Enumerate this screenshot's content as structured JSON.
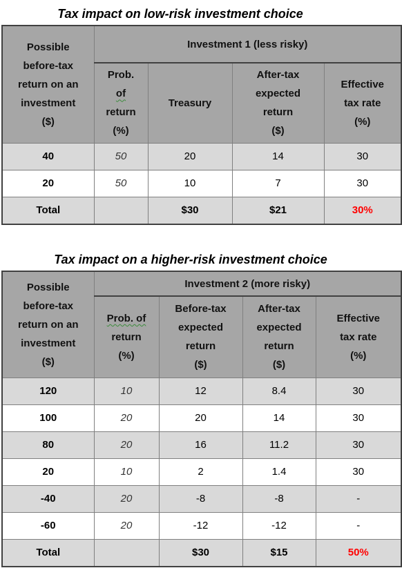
{
  "table1": {
    "title": "Tax impact on low-risk investment choice",
    "header": {
      "col1": [
        "Possible",
        "before-tax",
        "return on an",
        "investment",
        "($)"
      ],
      "group": "Investment 1 (less risky)",
      "prob": [
        "Prob.",
        "of",
        "return",
        "(%)"
      ],
      "treasury": "Treasury",
      "aftertax": [
        "After-tax",
        "expected",
        "return",
        "($)"
      ],
      "effective": [
        "Effective",
        "tax rate",
        "(%)"
      ]
    },
    "rows": [
      {
        "ret": "40",
        "prob": "50",
        "treasury": "20",
        "after": "14",
        "rate": "30"
      },
      {
        "ret": "20",
        "prob": "50",
        "treasury": "10",
        "after": "7",
        "rate": "30"
      }
    ],
    "total": {
      "label": "Total",
      "prob": "",
      "treasury": "$30",
      "after": "$21",
      "rate": "30%"
    }
  },
  "table2": {
    "title": "Tax impact on a higher-risk investment choice",
    "header": {
      "col1": [
        "Possible",
        "before-tax",
        "return on an",
        "investment",
        "($)"
      ],
      "group": "Investment 2 (more risky)",
      "prob": [
        "Prob.  of",
        "return",
        "(%)"
      ],
      "before": [
        "Before-tax",
        "expected",
        "return",
        "($)"
      ],
      "aftertax": [
        "After-tax",
        "expected",
        "return",
        "($)"
      ],
      "effective": [
        "Effective",
        "tax rate",
        "(%)"
      ]
    },
    "rows": [
      {
        "ret": "120",
        "prob": "10",
        "before": "12",
        "after": "8.4",
        "rate": "30"
      },
      {
        "ret": "100",
        "prob": "20",
        "before": "20",
        "after": "14",
        "rate": "30"
      },
      {
        "ret": "80",
        "prob": "20",
        "before": "16",
        "after": "11.2",
        "rate": "30"
      },
      {
        "ret": "20",
        "prob": "10",
        "before": "2",
        "after": "1.4",
        "rate": "30"
      },
      {
        "ret": "-40",
        "prob": "20",
        "before": "-8",
        "after": "-8",
        "rate": "-"
      },
      {
        "ret": "-60",
        "prob": "20",
        "before": "-12",
        "after": "-12",
        "rate": "-"
      }
    ],
    "total": {
      "label": "Total",
      "prob": "",
      "before": "$30",
      "after": "$15",
      "rate": "50%"
    }
  },
  "colors": {
    "header_bg": "#a6a6a6",
    "shade_row": "#d9d9d9",
    "highlight": "#ff0000"
  }
}
